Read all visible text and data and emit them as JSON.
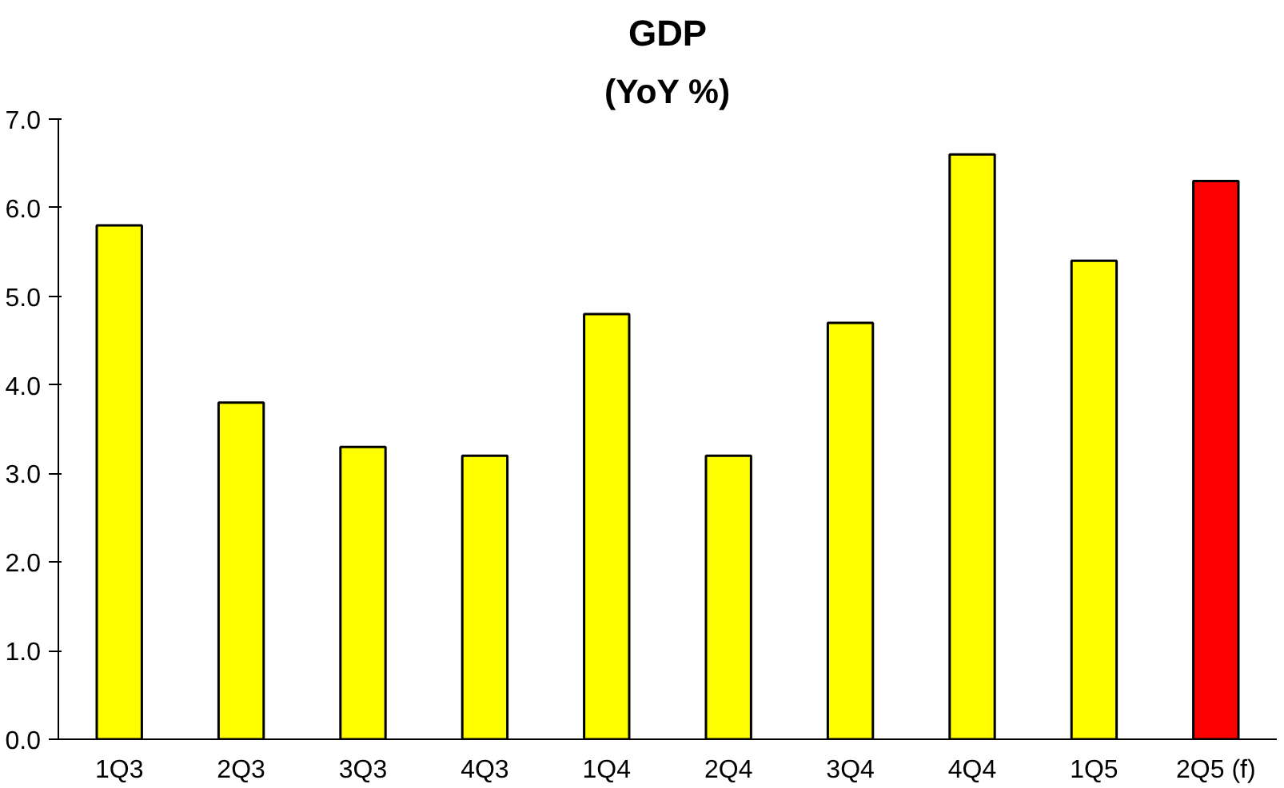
{
  "chart_data": {
    "type": "bar",
    "title": "GDP",
    "subtitle": "(YoY %)",
    "categories": [
      "1Q3",
      "2Q3",
      "3Q3",
      "4Q3",
      "1Q4",
      "2Q4",
      "3Q4",
      "4Q4",
      "1Q5",
      "2Q5 (f)"
    ],
    "values": [
      5.8,
      3.8,
      3.3,
      3.2,
      4.8,
      3.2,
      4.7,
      6.6,
      5.4,
      6.3
    ],
    "colors": [
      "#ffff00",
      "#ffff00",
      "#ffff00",
      "#ffff00",
      "#ffff00",
      "#ffff00",
      "#ffff00",
      "#ffff00",
      "#ffff00",
      "#ff0000"
    ],
    "ylim": [
      0,
      7
    ],
    "yticks": [
      {
        "value": 0,
        "label": "0.0"
      },
      {
        "value": 1,
        "label": "1.0"
      },
      {
        "value": 2,
        "label": "2.0"
      },
      {
        "value": 3,
        "label": "3.0"
      },
      {
        "value": 4,
        "label": "4.0"
      },
      {
        "value": 5,
        "label": "5.0"
      },
      {
        "value": 6,
        "label": "6.0"
      },
      {
        "value": 7,
        "label": "7.0"
      }
    ],
    "grid": false
  }
}
